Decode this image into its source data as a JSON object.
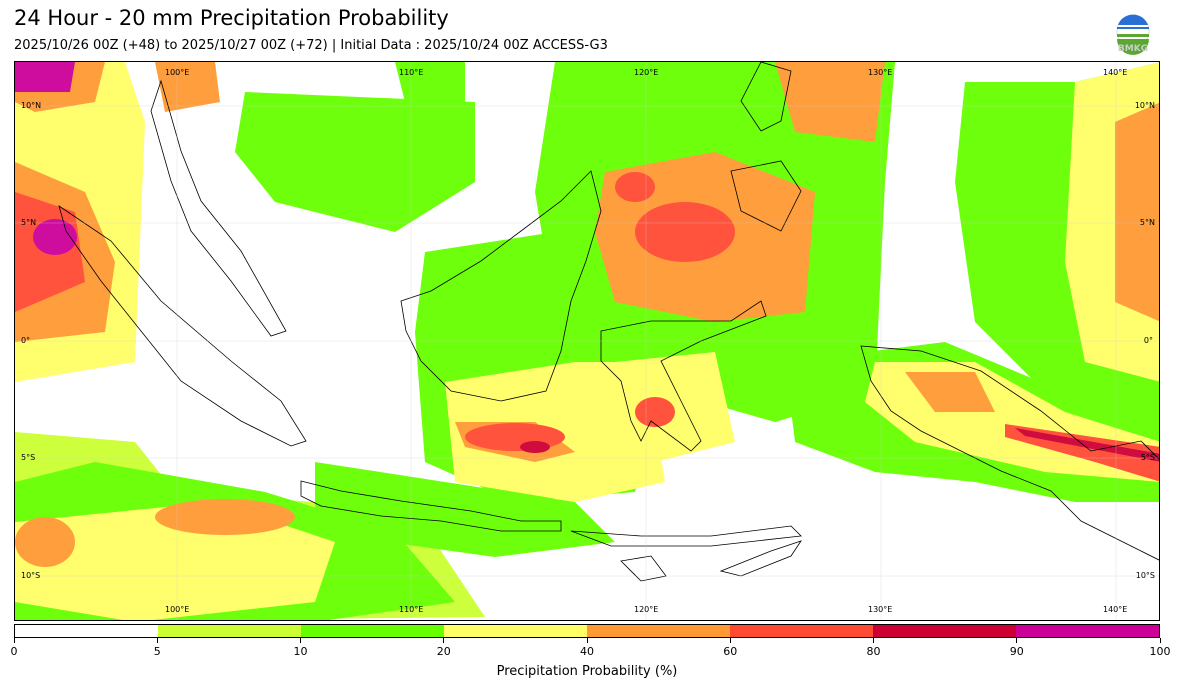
{
  "header": {
    "title": "24 Hour - 20 mm Precipitation Probability",
    "subtitle": "2025/10/26 00Z (+48) to 2025/10/27 00Z (+72) | Initial Data : 2025/10/24 00Z ACCESS-G3"
  },
  "logo": {
    "text": "BMKG"
  },
  "map": {
    "lon_labels": [
      "100°E",
      "110°E",
      "120°E",
      "130°E",
      "140°E"
    ],
    "lat_labels": [
      "10°N",
      "5°N",
      "0°",
      "5°S",
      "10°S"
    ]
  },
  "colorbar": {
    "label": "Precipitation Probability (%)",
    "ticks": [
      "0",
      "5",
      "10",
      "20",
      "40",
      "60",
      "80",
      "90",
      "100"
    ],
    "colors": [
      "#ffffff",
      "#ccff33",
      "#66ff00",
      "#ffff66",
      "#ff9933",
      "#ff4a33",
      "#cc0033",
      "#cc0099"
    ]
  }
}
